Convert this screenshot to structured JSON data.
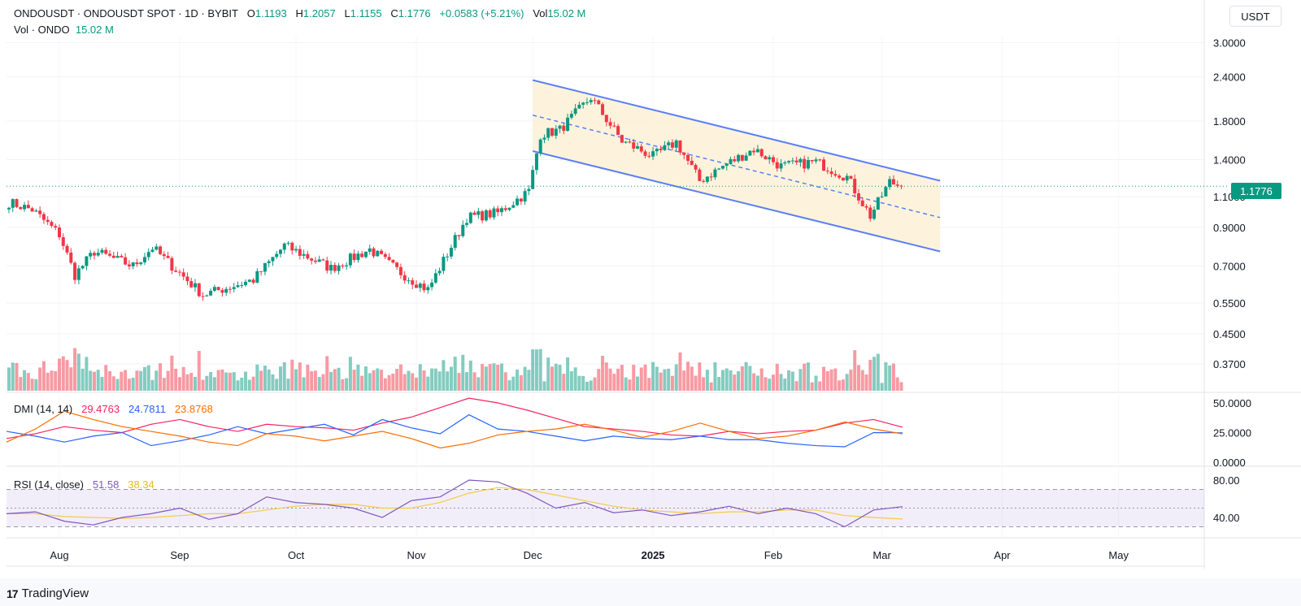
{
  "header": {
    "symbol": "ONDOUSDT · ONDOUSDT SPOT · 1D · BYBIT",
    "o_label": "O",
    "o_value": "1.1193",
    "h_label": "H",
    "h_value": "1.2057",
    "l_label": "L",
    "l_value": "1.1155",
    "c_label": "C",
    "c_value": "1.1776",
    "change": "+0.0583 (+5.21%)",
    "vol_label": "Vol",
    "vol_value": "15.02 M",
    "vol_series_label": "Vol · ONDO",
    "vol_series_value": "15.02 M"
  },
  "currency_button": "USDT",
  "last_price": "1.1776",
  "dmi_legend": {
    "label": "DMI (14, 14)",
    "v1": "29.4763",
    "v2": "24.7811",
    "v3": "23.8768"
  },
  "rsi_legend": {
    "label": "RSI (14, close)",
    "v1": "51.58",
    "v2": "38.34"
  },
  "brand": "TradingView",
  "colors": {
    "up": "#089981",
    "down": "#f23645",
    "channel": "#5b7ff5",
    "channel_fill": "#fdf1d6",
    "dmi_plus": "#f7215f",
    "dmi_minus": "#2962ff",
    "adx": "#ff6d00",
    "rsi": "#7e57c2",
    "rsi_ma": "#f7c948"
  },
  "chart_data": [
    {
      "type": "candlestick",
      "title": "ONDOUSDT · ONDOUSDT SPOT · 1D · BYBIT",
      "y_scale": "log",
      "y_ticks": [
        "3.0000",
        "2.4000",
        "1.8000",
        "1.4000",
        "1.1000",
        "0.9000",
        "0.7000",
        "0.5500",
        "0.4500",
        "0.3700"
      ],
      "x_ticks": [
        "Aug",
        "Sep",
        "Oct",
        "Nov",
        "Dec",
        "2025",
        "Feb",
        "Mar",
        "Apr",
        "May"
      ],
      "date_range": [
        "2024-07-19",
        "2025-03-06"
      ],
      "close_path": [
        {
          "date": "2024-07-19",
          "close": 1.06
        },
        {
          "date": "2024-07-25",
          "close": 1.01
        },
        {
          "date": "2024-08-01",
          "close": 0.86
        },
        {
          "date": "2024-08-05",
          "close": 0.66
        },
        {
          "date": "2024-08-10",
          "close": 0.77
        },
        {
          "date": "2024-08-20",
          "close": 0.7
        },
        {
          "date": "2024-08-25",
          "close": 0.79
        },
        {
          "date": "2024-09-07",
          "close": 0.58
        },
        {
          "date": "2024-09-20",
          "close": 0.64
        },
        {
          "date": "2024-09-28",
          "close": 0.8
        },
        {
          "date": "2024-10-10",
          "close": 0.69
        },
        {
          "date": "2024-10-20",
          "close": 0.78
        },
        {
          "date": "2024-10-28",
          "close": 0.67
        },
        {
          "date": "2024-11-04",
          "close": 0.6
        },
        {
          "date": "2024-11-14",
          "close": 0.96
        },
        {
          "date": "2024-11-22",
          "close": 0.99
        },
        {
          "date": "2024-11-30",
          "close": 1.14
        },
        {
          "date": "2024-12-03",
          "close": 1.65
        },
        {
          "date": "2024-12-08",
          "close": 1.7
        },
        {
          "date": "2024-12-16",
          "close": 2.1
        },
        {
          "date": "2024-12-24",
          "close": 1.58
        },
        {
          "date": "2025-01-01",
          "close": 1.43
        },
        {
          "date": "2025-01-07",
          "close": 1.57
        },
        {
          "date": "2025-01-13",
          "close": 1.22
        },
        {
          "date": "2025-01-20",
          "close": 1.36
        },
        {
          "date": "2025-01-27",
          "close": 1.5
        },
        {
          "date": "2025-02-03",
          "close": 1.34
        },
        {
          "date": "2025-02-12",
          "close": 1.38
        },
        {
          "date": "2025-02-20",
          "close": 1.25
        },
        {
          "date": "2025-02-26",
          "close": 0.97
        },
        {
          "date": "2025-03-03",
          "close": 1.21
        },
        {
          "date": "2025-03-06",
          "close": 1.1776
        }
      ],
      "channel": {
        "upper": [
          [
            "2024-12-01",
            2.35
          ],
          [
            "2025-03-16",
            1.22
          ]
        ],
        "lower": [
          [
            "2024-12-01",
            1.48
          ],
          [
            "2025-03-16",
            0.77
          ]
        ],
        "mid": [
          [
            "2024-12-01",
            1.87
          ],
          [
            "2025-03-16",
            0.96
          ]
        ]
      }
    },
    {
      "type": "bar",
      "title": "Vol · ONDO",
      "series": [
        {
          "name": "Vol",
          "last": "15.02 M"
        }
      ]
    },
    {
      "type": "line",
      "title": "DMI (14, 14)",
      "y_ticks": [
        "50.0000",
        "25.0000",
        "0.0000"
      ],
      "series": [
        {
          "name": "+DI",
          "last": 29.4763,
          "values": [
            20,
            24,
            30,
            27,
            25,
            32,
            36,
            30,
            26,
            32,
            30,
            29,
            27,
            33,
            38,
            46,
            54,
            50,
            44,
            37,
            30,
            28,
            26,
            23,
            22,
            26,
            24,
            26,
            27,
            33,
            36,
            29.48
          ]
        },
        {
          "name": "-DI",
          "last": 24.7811,
          "values": [
            26,
            22,
            17,
            22,
            25,
            14,
            18,
            23,
            30,
            24,
            28,
            32,
            23,
            36,
            29,
            24,
            40,
            28,
            26,
            22,
            18,
            22,
            20,
            19,
            22,
            19,
            19,
            16,
            14,
            13,
            25,
            24.78
          ]
        },
        {
          "name": "ADX",
          "last": 23.8768,
          "values": [
            17,
            28,
            43,
            36,
            30,
            26,
            22,
            17,
            14,
            24,
            22,
            18,
            22,
            26,
            20,
            12,
            16,
            23,
            26,
            28,
            32,
            27,
            21,
            26,
            33,
            26,
            20,
            22,
            27,
            34,
            28,
            23.88
          ]
        }
      ]
    },
    {
      "type": "line",
      "title": "RSI (14, close)",
      "y_ticks": [
        "80.00",
        "40.00"
      ],
      "series": [
        {
          "name": "RSI",
          "last": 51.58,
          "values": [
            44,
            46,
            36,
            32,
            40,
            44,
            50,
            38,
            44,
            62,
            56,
            54,
            50,
            40,
            58,
            62,
            80,
            78,
            66,
            50,
            56,
            45,
            48,
            42,
            46,
            52,
            44,
            50,
            44,
            30,
            48,
            51.58
          ]
        },
        {
          "name": "RSI MA",
          "last": 38.34,
          "values": [
            44,
            44,
            41,
            40,
            39,
            40,
            42,
            44,
            44,
            48,
            52,
            54,
            54,
            50,
            50,
            56,
            66,
            72,
            70,
            64,
            58,
            52,
            48,
            46,
            44,
            46,
            46,
            48,
            48,
            42,
            40,
            38.34
          ]
        }
      ]
    }
  ]
}
